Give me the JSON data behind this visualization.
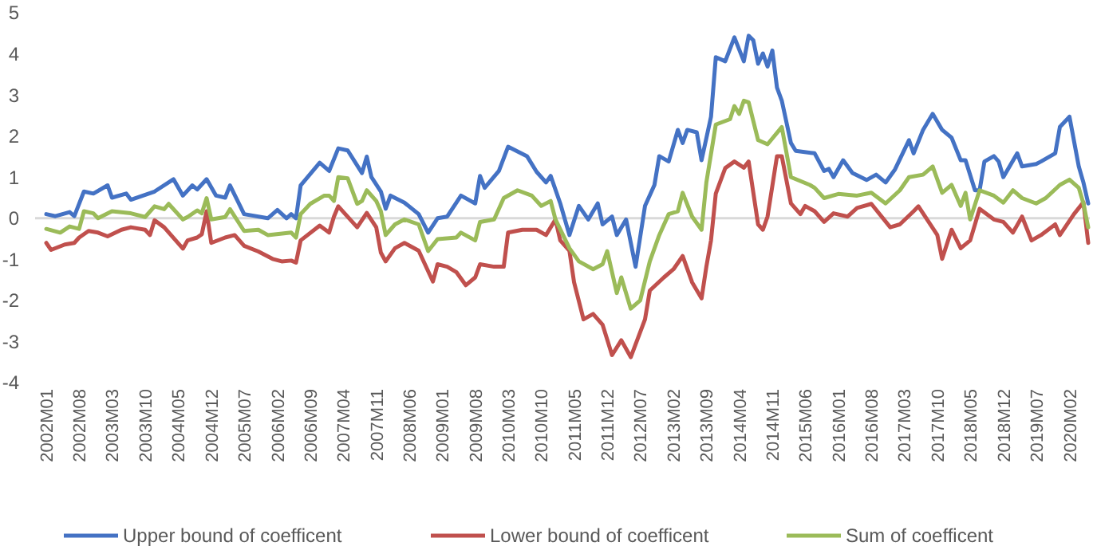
{
  "chart_data": {
    "type": "line",
    "xlim": [
      "2002-01",
      "2020-06"
    ],
    "ylim": [
      -4,
      5
    ],
    "yticks": [
      -4,
      -3,
      -2,
      -1,
      0,
      1,
      2,
      3,
      4,
      5
    ],
    "xticks": [
      {
        "value": "2002-01",
        "label": "2002M01"
      },
      {
        "value": "2002-08",
        "label": "2002M08"
      },
      {
        "value": "2003-03",
        "label": "2003M03"
      },
      {
        "value": "2003-10",
        "label": "2003M10"
      },
      {
        "value": "2004-05",
        "label": "2004M05"
      },
      {
        "value": "2004-12",
        "label": "2004M12"
      },
      {
        "value": "2005-07",
        "label": "2005M07"
      },
      {
        "value": "2006-02",
        "label": "2006M02"
      },
      {
        "value": "2006-09",
        "label": "2006M09"
      },
      {
        "value": "2007-04",
        "label": "2007M04"
      },
      {
        "value": "2007-11",
        "label": "2007M11"
      },
      {
        "value": "2008-06",
        "label": "2008M06"
      },
      {
        "value": "2009-01",
        "label": "2009M01"
      },
      {
        "value": "2009-08",
        "label": "2009M08"
      },
      {
        "value": "2010-03",
        "label": "2010M03"
      },
      {
        "value": "2010-10",
        "label": "2010M10"
      },
      {
        "value": "2011-05",
        "label": "2011M05"
      },
      {
        "value": "2011-12",
        "label": "2011M12"
      },
      {
        "value": "2012-07",
        "label": "2012M07"
      },
      {
        "value": "2013-02",
        "label": "2013M02"
      },
      {
        "value": "2013-09",
        "label": "2013M09"
      },
      {
        "value": "2014-04",
        "label": "2014M04"
      },
      {
        "value": "2014-11",
        "label": "2014M11"
      },
      {
        "value": "2015-06",
        "label": "2015M06"
      },
      {
        "value": "2016-01",
        "label": "2016M01"
      },
      {
        "value": "2016-08",
        "label": "2016M08"
      },
      {
        "value": "2017-03",
        "label": "2017M03"
      },
      {
        "value": "2017-10",
        "label": "2017M10"
      },
      {
        "value": "2018-05",
        "label": "2018M05"
      },
      {
        "value": "2018-12",
        "label": "2018M12"
      },
      {
        "value": "2019-07",
        "label": "2019M07"
      },
      {
        "value": "2020-02",
        "label": "2020M02"
      }
    ],
    "grid": false,
    "legend": "bottom",
    "marker": "none",
    "ref_lines": [
      {
        "axis": "y",
        "value": 0,
        "color": "#d9d9d9"
      }
    ],
    "series": [
      {
        "name": "Upper  bound of coefficent",
        "color": "#4472c4",
        "x": [
          "2002-01",
          "2002-03",
          "2002-06",
          "2002-07",
          "2002-09",
          "2002-11",
          "2003-02",
          "2003-03",
          "2003-06",
          "2003-07",
          "2003-12",
          "2004-04",
          "2004-06",
          "2004-08",
          "2004-09",
          "2004-11",
          "2005-01",
          "2005-03",
          "2005-04",
          "2005-07",
          "2005-12",
          "2006-02",
          "2006-04",
          "2006-05",
          "2006-06",
          "2006-07",
          "2006-11",
          "2007-01",
          "2007-03",
          "2007-05",
          "2007-08",
          "2007-09",
          "2007-10",
          "2007-12",
          "2008-01",
          "2008-02",
          "2008-05",
          "2008-08",
          "2008-10",
          "2008-12",
          "2009-02",
          "2009-05",
          "2009-08",
          "2009-09",
          "2009-10",
          "2010-01",
          "2010-03",
          "2010-07",
          "2010-09",
          "2010-11",
          "2010-12",
          "2011-02",
          "2011-04",
          "2011-06",
          "2011-08",
          "2011-10",
          "2011-11",
          "2012-01",
          "2012-02",
          "2012-04",
          "2012-06",
          "2012-08",
          "2012-10",
          "2012-11",
          "2013-01",
          "2013-03",
          "2013-04",
          "2013-05",
          "2013-07",
          "2013-08",
          "2013-10",
          "2013-11",
          "2014-01",
          "2014-03",
          "2014-05",
          "2014-06",
          "2014-07",
          "2014-08",
          "2014-09",
          "2014-10",
          "2014-11",
          "2014-12",
          "2015-01",
          "2015-03",
          "2015-04",
          "2015-08",
          "2015-10",
          "2015-11",
          "2015-12",
          "2016-02",
          "2016-04",
          "2016-07",
          "2016-09",
          "2016-11",
          "2017-01",
          "2017-04",
          "2017-05",
          "2017-07",
          "2017-09",
          "2017-11",
          "2018-01",
          "2018-03",
          "2018-04",
          "2018-06",
          "2018-07",
          "2018-08",
          "2018-10",
          "2018-11",
          "2018-12",
          "2019-03",
          "2019-04",
          "2019-07",
          "2019-08",
          "2019-11",
          "2019-12",
          "2020-02",
          "2020-04",
          "2020-05",
          "2020-06"
        ],
        "values": [
          0.1,
          0.05,
          0.15,
          0.05,
          0.65,
          0.6,
          0.8,
          0.5,
          0.6,
          0.45,
          0.65,
          0.95,
          0.55,
          0.8,
          0.7,
          0.95,
          0.55,
          0.5,
          0.8,
          0.1,
          0.0,
          0.2,
          0.0,
          0.1,
          0.0,
          0.8,
          1.35,
          1.15,
          1.7,
          1.65,
          1.1,
          1.5,
          1.0,
          0.65,
          0.23,
          0.55,
          0.38,
          0.1,
          -0.35,
          0.0,
          0.04,
          0.55,
          0.36,
          1.03,
          0.74,
          1.15,
          1.74,
          1.51,
          1.13,
          0.87,
          1.03,
          0.36,
          -0.41,
          0.3,
          -0.03,
          0.36,
          -0.15,
          0.04,
          -0.41,
          -0.03,
          -1.18,
          0.3,
          0.81,
          1.51,
          1.38,
          2.15,
          1.83,
          2.15,
          2.09,
          1.41,
          2.47,
          3.92,
          3.82,
          4.4,
          3.82,
          4.44,
          4.33,
          3.76,
          4.01,
          3.69,
          4.08,
          3.18,
          2.86,
          1.83,
          1.64,
          1.58,
          1.15,
          1.2,
          1.0,
          1.41,
          1.1,
          0.93,
          1.06,
          0.87,
          1.19,
          1.9,
          1.58,
          2.15,
          2.54,
          2.15,
          1.96,
          1.41,
          1.41,
          0.68,
          0.68,
          1.38,
          1.51,
          1.38,
          1.0,
          1.58,
          1.26,
          1.32,
          1.38,
          1.58,
          2.22,
          2.47,
          1.26,
          0.87,
          0.36
        ]
      },
      {
        "name": "Lower bound of coefficent",
        "color": "#c0504d",
        "x": [
          "2002-01",
          "2002-02",
          "2002-05",
          "2002-07",
          "2002-08",
          "2002-10",
          "2002-12",
          "2003-02",
          "2003-05",
          "2003-07",
          "2003-10",
          "2003-11",
          "2003-12",
          "2004-02",
          "2004-06",
          "2004-07",
          "2004-09",
          "2004-10",
          "2004-11",
          "2004-12",
          "2005-03",
          "2005-05",
          "2005-07",
          "2005-10",
          "2006-01",
          "2006-03",
          "2006-05",
          "2006-06",
          "2006-07",
          "2006-11",
          "2007-01",
          "2007-02",
          "2007-03",
          "2007-07",
          "2007-09",
          "2007-11",
          "2007-12",
          "2008-01",
          "2008-03",
          "2008-05",
          "2008-08",
          "2008-11",
          "2008-12",
          "2009-02",
          "2009-04",
          "2009-06",
          "2009-08",
          "2009-09",
          "2009-12",
          "2010-02",
          "2010-03",
          "2010-06",
          "2010-09",
          "2010-11",
          "2011-01",
          "2011-02",
          "2011-04",
          "2011-05",
          "2011-07",
          "2011-09",
          "2011-11",
          "2012-01",
          "2012-03",
          "2012-05",
          "2012-08",
          "2012-09",
          "2012-12",
          "2013-02",
          "2013-04",
          "2013-06",
          "2013-08",
          "2013-09",
          "2013-10",
          "2013-11",
          "2014-01",
          "2014-03",
          "2014-05",
          "2014-06",
          "2014-08",
          "2014-09",
          "2014-10",
          "2014-12",
          "2015-01",
          "2015-03",
          "2015-05",
          "2015-06",
          "2015-08",
          "2015-10",
          "2015-12",
          "2016-03",
          "2016-05",
          "2016-08",
          "2016-12",
          "2017-02",
          "2017-05",
          "2017-06",
          "2017-10",
          "2017-11",
          "2018-01",
          "2018-03",
          "2018-05",
          "2018-07",
          "2018-10",
          "2018-12",
          "2019-02",
          "2019-04",
          "2019-06",
          "2019-08",
          "2019-11",
          "2019-12",
          "2020-03",
          "2020-05",
          "2020-06"
        ],
        "values": [
          -0.6,
          -0.77,
          -0.64,
          -0.6,
          -0.47,
          -0.31,
          -0.35,
          -0.44,
          -0.28,
          -0.22,
          -0.28,
          -0.41,
          -0.05,
          -0.22,
          -0.74,
          -0.54,
          -0.47,
          -0.39,
          0.17,
          -0.6,
          -0.47,
          -0.41,
          -0.67,
          -0.81,
          -0.99,
          -1.05,
          -1.03,
          -1.08,
          -0.54,
          -0.18,
          -0.35,
          0.04,
          0.29,
          -0.22,
          0.13,
          -0.22,
          -0.84,
          -1.05,
          -0.73,
          -0.6,
          -0.79,
          -1.54,
          -1.12,
          -1.18,
          -1.31,
          -1.63,
          -1.44,
          -1.12,
          -1.18,
          -1.18,
          -0.35,
          -0.28,
          -0.28,
          -0.41,
          -0.03,
          -0.54,
          -0.79,
          -1.56,
          -2.46,
          -2.33,
          -2.59,
          -3.33,
          -2.97,
          -3.38,
          -2.46,
          -1.76,
          -1.44,
          -1.24,
          -0.92,
          -1.56,
          -1.95,
          -1.18,
          -0.54,
          0.6,
          1.22,
          1.38,
          1.23,
          1.38,
          -0.15,
          -0.28,
          0.04,
          1.51,
          1.51,
          0.36,
          0.1,
          0.3,
          0.17,
          -0.09,
          0.12,
          0.04,
          0.25,
          0.35,
          -0.22,
          -0.15,
          0.17,
          0.29,
          -0.41,
          -0.99,
          -0.28,
          -0.73,
          -0.54,
          0.23,
          -0.03,
          -0.09,
          -0.35,
          0.04,
          -0.54,
          -0.41,
          -0.15,
          -0.41,
          0.1,
          0.39,
          -0.6
        ]
      },
      {
        "name": "Sum of coefficent",
        "color": "#9bbb59",
        "x": [
          "2002-01",
          "2002-04",
          "2002-06",
          "2002-08",
          "2002-09",
          "2002-11",
          "2002-12",
          "2003-03",
          "2003-07",
          "2003-10",
          "2003-12",
          "2004-02",
          "2004-03",
          "2004-06",
          "2004-07",
          "2004-09",
          "2004-10",
          "2004-11",
          "2004-12",
          "2005-03",
          "2005-04",
          "2005-07",
          "2005-10",
          "2005-12",
          "2006-05",
          "2006-06",
          "2006-07",
          "2006-09",
          "2006-12",
          "2007-01",
          "2007-02",
          "2007-03",
          "2007-05",
          "2007-07",
          "2007-08",
          "2007-09",
          "2007-11",
          "2007-12",
          "2008-01",
          "2008-03",
          "2008-05",
          "2008-08",
          "2008-10",
          "2008-12",
          "2009-04",
          "2009-05",
          "2009-08",
          "2009-09",
          "2009-12",
          "2010-02",
          "2010-05",
          "2010-08",
          "2010-10",
          "2010-12",
          "2011-01",
          "2011-04",
          "2011-06",
          "2011-09",
          "2011-11",
          "2011-12",
          "2012-02",
          "2012-03",
          "2012-05",
          "2012-07",
          "2012-09",
          "2012-11",
          "2013-01",
          "2013-03",
          "2013-04",
          "2013-06",
          "2013-08",
          "2013-09",
          "2013-11",
          "2014-02",
          "2014-03",
          "2014-04",
          "2014-05",
          "2014-06",
          "2014-08",
          "2014-10",
          "2015-01",
          "2015-03",
          "2015-07",
          "2015-08",
          "2015-10",
          "2016-01",
          "2016-05",
          "2016-08",
          "2016-11",
          "2017-02",
          "2017-04",
          "2017-07",
          "2017-09",
          "2017-11",
          "2018-01",
          "2018-03",
          "2018-04",
          "2018-05",
          "2018-07",
          "2018-10",
          "2018-12",
          "2019-02",
          "2019-04",
          "2019-07",
          "2019-09",
          "2019-12",
          "2020-02",
          "2020-04",
          "2020-05",
          "2020-06"
        ],
        "values": [
          -0.26,
          -0.35,
          -0.2,
          -0.26,
          0.17,
          0.12,
          0.0,
          0.17,
          0.12,
          0.03,
          0.29,
          0.22,
          0.35,
          -0.03,
          0.03,
          0.19,
          0.12,
          0.49,
          -0.03,
          0.03,
          0.22,
          -0.31,
          -0.28,
          -0.41,
          -0.35,
          -0.47,
          0.1,
          0.35,
          0.55,
          0.55,
          0.42,
          1.0,
          0.97,
          0.35,
          0.42,
          0.68,
          0.42,
          0.17,
          -0.41,
          -0.15,
          -0.03,
          -0.15,
          -0.8,
          -0.51,
          -0.47,
          -0.35,
          -0.54,
          -0.09,
          -0.03,
          0.49,
          0.68,
          0.55,
          0.3,
          0.42,
          -0.03,
          -0.73,
          -1.05,
          -1.24,
          -1.12,
          -0.8,
          -1.82,
          -1.44,
          -2.2,
          -2.0,
          -1.05,
          -0.41,
          0.1,
          0.17,
          0.62,
          0.04,
          -0.28,
          0.87,
          2.28,
          2.41,
          2.73,
          2.54,
          2.86,
          2.82,
          1.9,
          1.8,
          2.22,
          1.0,
          0.81,
          0.74,
          0.49,
          0.59,
          0.55,
          0.62,
          0.36,
          0.68,
          1.0,
          1.06,
          1.26,
          0.62,
          0.81,
          0.3,
          0.62,
          -0.03,
          0.68,
          0.55,
          0.38,
          0.68,
          0.49,
          0.36,
          0.49,
          0.81,
          0.94,
          0.74,
          0.36,
          -0.22
        ]
      }
    ]
  }
}
